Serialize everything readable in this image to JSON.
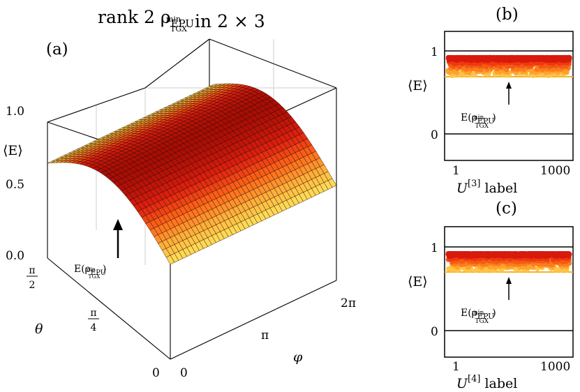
{
  "title": "rank 2 ρEPU min TGX in 2 × 3",
  "title_parts": {
    "pre": "rank 2 ρ",
    "sub": "EPU",
    "subsub": "TGX",
    "sup": "min",
    "post": "in 2 × 3"
  },
  "panels": {
    "a": "(a)",
    "b": "(b)",
    "c": "(c)"
  },
  "chart_data": [
    {
      "type": "surface",
      "panel": "(a)",
      "zlabel": "⟨E⟩",
      "xlabel": "φ",
      "ylabel": "θ",
      "zticks": [
        "0.0",
        "0.5",
        "1.0"
      ],
      "ztick_values": [
        0.0,
        0.5,
        1.0
      ],
      "phi_ticks": [
        "0",
        "π",
        "2π"
      ],
      "theta_ticks": [
        "0",
        "π/4",
        "π/2"
      ],
      "theta_tick_parts": [
        [
          "0",
          ""
        ],
        [
          "π",
          "4"
        ],
        [
          "π",
          "2"
        ]
      ],
      "phi_range": [
        0,
        6.283
      ],
      "theta_range": [
        0,
        1.571
      ],
      "zlim": [
        0,
        1.2
      ],
      "surface": "E(θ,φ) ≈ 0.68 + 0.25·sin(2θ)",
      "annotation": {
        "text": "E(ρEPU min TGX)",
        "value": 0.68
      },
      "colormap": [
        "#ffe45c",
        "#ffb13b",
        "#ff6a1a",
        "#e02010",
        "#a80d05"
      ]
    },
    {
      "type": "scatter",
      "panel": "(b)",
      "ylabel": "⟨E⟩",
      "xlabel_parts": {
        "base": "U",
        "sup": "[3]",
        "post": "label"
      },
      "xticks": [
        "1",
        "1000"
      ],
      "yticks": [
        "0",
        "1"
      ],
      "xlim": [
        1,
        1000
      ],
      "ylim": [
        -0.25,
        1.25
      ],
      "n_points": 1000,
      "value_range": [
        0.7,
        0.92
      ],
      "reference_line": 0.7,
      "reference_color": "#f4b320",
      "annotation": "E(ρEPU min TGX)"
    },
    {
      "type": "scatter",
      "panel": "(c)",
      "ylabel": "⟨E⟩",
      "xlabel_parts": {
        "base": "U",
        "sup": "[4]",
        "post": "label"
      },
      "xticks": [
        "1",
        "1000"
      ],
      "yticks": [
        "0",
        "1"
      ],
      "xlim": [
        1,
        1000
      ],
      "ylim": [
        -0.25,
        1.25
      ],
      "n_points": 1000,
      "value_range": [
        0.72,
        0.92
      ],
      "reference_line": 0.7,
      "reference_color": "#f4b320",
      "annotation": "E(ρEPU min TGX)"
    }
  ]
}
